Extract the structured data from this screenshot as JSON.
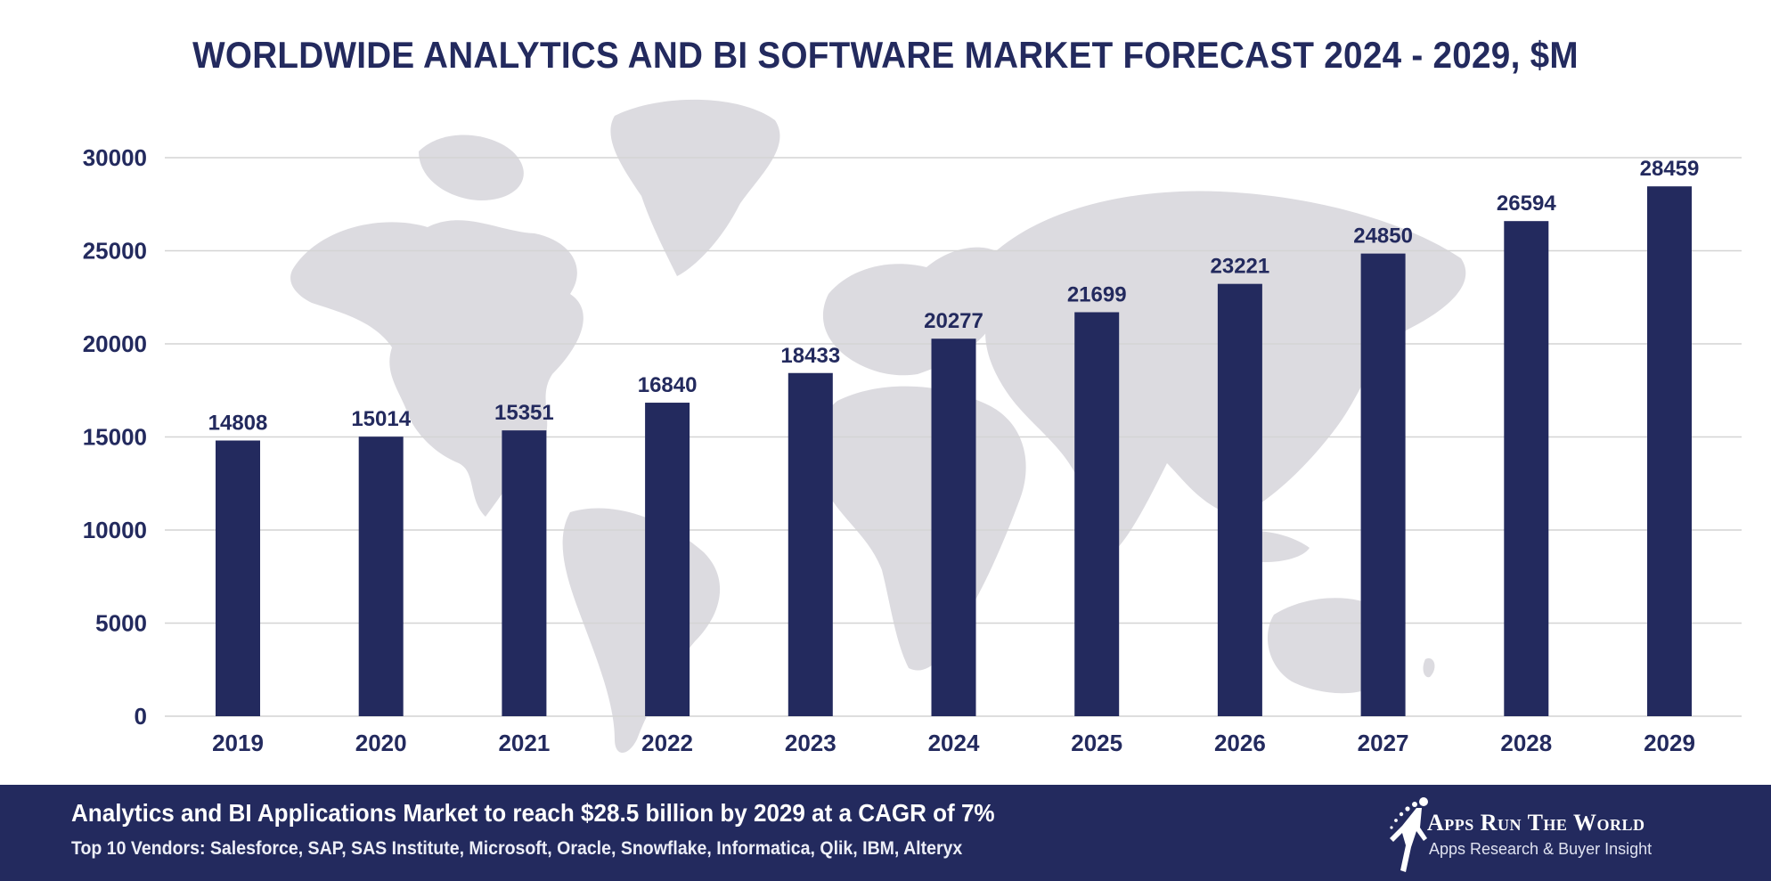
{
  "title": "WORLDWIDE ANALYTICS AND BI SOFTWARE MARKET FORECAST 2024 - 2029, $M",
  "colors": {
    "bar": "#232a5e",
    "grid": "#d4d4d4",
    "map": "#dcdbe0",
    "text": "#232a5e",
    "footer_bg": "#232a5e"
  },
  "chart_data": {
    "type": "bar",
    "title": "WORLDWIDE ANALYTICS AND BI SOFTWARE MARKET FORECAST 2024 - 2029, $M",
    "categories": [
      "2019",
      "2020",
      "2021",
      "2022",
      "2023",
      "2024",
      "2025",
      "2026",
      "2027",
      "2028",
      "2029"
    ],
    "values": [
      14808,
      15014,
      15351,
      16840,
      18433,
      20277,
      21699,
      23221,
      24850,
      26594,
      28459
    ],
    "yticks": [
      0,
      5000,
      10000,
      15000,
      20000,
      25000,
      30000
    ],
    "ylim": [
      0,
      30000
    ],
    "xlabel": "",
    "ylabel": "",
    "grid": true,
    "data_labels": true,
    "background": "world-map"
  },
  "footer": {
    "headline": "Analytics and BI Applications Market to reach $28.5 billion by 2029 at a CAGR of 7%",
    "vendors": "Top 10 Vendors: Salesforce, SAP, SAS Institute, Microsoft, Oracle, Snowflake, Informatica, Qlik, IBM, Alteryx",
    "logo": {
      "brand": "Apps Run The World",
      "tagline": "Apps Research & Buyer Insight",
      "icon": "running-figure-icon"
    }
  }
}
